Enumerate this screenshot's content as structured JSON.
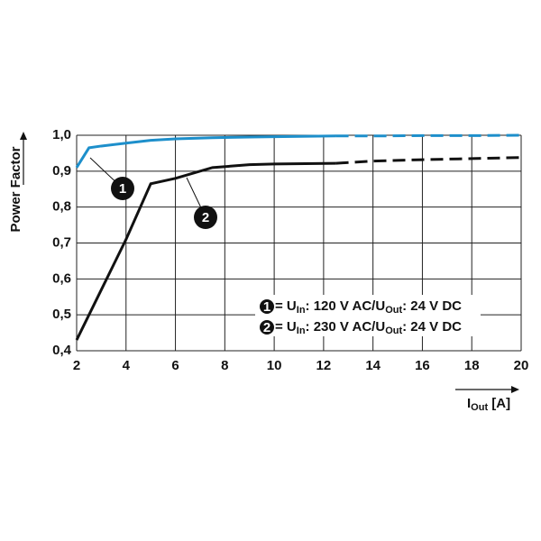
{
  "chart_data": {
    "type": "line",
    "y_label": "Power Factor",
    "x_label": [
      {
        "text": "I",
        "sub": false
      },
      {
        "text": "Out",
        "sub": true
      },
      {
        "text": " [A]",
        "sub": false
      }
    ],
    "xlim": [
      2,
      20
    ],
    "xticks": [
      2,
      4,
      6,
      8,
      10,
      12,
      14,
      16,
      18,
      20
    ],
    "ylim": [
      0.4,
      1.0
    ],
    "yticks": [
      {
        "value": 0.4,
        "label": "0,4"
      },
      {
        "value": 0.5,
        "label": "0,5"
      },
      {
        "value": 0.6,
        "label": "0,6"
      },
      {
        "value": 0.7,
        "label": "0,7"
      },
      {
        "value": 0.8,
        "label": "0,8"
      },
      {
        "value": 0.9,
        "label": "0,9"
      },
      {
        "value": 1.0,
        "label": "1,0"
      }
    ],
    "grid": true,
    "dashed_from_x": 12.5,
    "x": [
      2,
      2.5,
      3,
      4,
      5,
      6,
      7.5,
      9,
      10,
      12.5,
      14,
      16,
      18,
      20
    ],
    "series": [
      {
        "name": "1",
        "color": "#1d8fcb",
        "legend": [
          {
            "text": "= U",
            "sub": false
          },
          {
            "text": "In",
            "sub": true
          },
          {
            "text": ": 120 V AC/U",
            "sub": false
          },
          {
            "text": "Out",
            "sub": true
          },
          {
            "text": ": 24 V DC",
            "sub": false
          }
        ],
        "values": [
          0.91,
          0.965,
          0.97,
          0.978,
          0.986,
          0.99,
          0.993,
          0.995,
          0.996,
          0.998,
          0.998,
          0.999,
          0.999,
          1.0
        ]
      },
      {
        "name": "2",
        "color": "#111111",
        "legend": [
          {
            "text": "= U",
            "sub": false
          },
          {
            "text": "In",
            "sub": true
          },
          {
            "text": ": 230 V AC/U",
            "sub": false
          },
          {
            "text": "Out",
            "sub": true
          },
          {
            "text": ": 24 V DC",
            "sub": false
          }
        ],
        "values": [
          0.43,
          0.5,
          0.57,
          0.71,
          0.865,
          0.88,
          0.91,
          0.918,
          0.92,
          0.922,
          0.928,
          0.932,
          0.935,
          0.938
        ]
      }
    ]
  }
}
